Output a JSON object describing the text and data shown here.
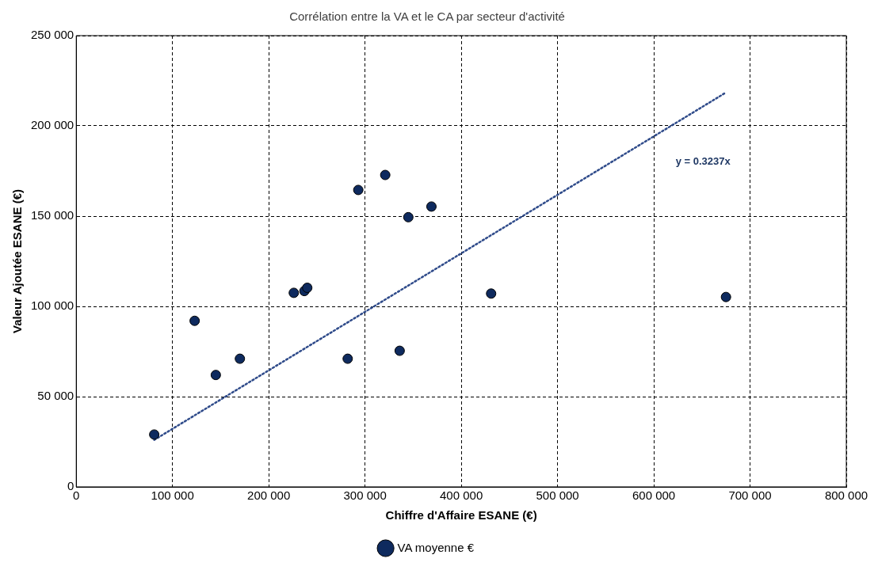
{
  "chart_data": {
    "type": "scatter",
    "title": "Corrélation entre la VA et le CA par secteur d'activité",
    "xlabel": "Chiffre d'Affaire ESANE (€)",
    "ylabel": "Valeur Ajoutée ESANE (€)",
    "series": [
      {
        "name": "VA moyenne €",
        "color": "#0e2a5e",
        "x": [
          81000,
          123000,
          145000,
          170000,
          226000,
          237000,
          240000,
          282000,
          293000,
          321000,
          336000,
          345000,
          369000,
          431000,
          675000
        ],
        "values": [
          29000,
          92000,
          62000,
          71000,
          107500,
          108500,
          110300,
          71000,
          164500,
          172800,
          75400,
          149400,
          155300,
          107100,
          105200
        ]
      },
      {
        "type": "line",
        "color": "#2f4b8a",
        "line_style": "dotted",
        "marker": "none",
        "x": [
          81000,
          675000
        ],
        "values": [
          26000,
          218500
        ]
      }
    ],
    "annotations": [
      "y = 0.3237x"
    ],
    "xlim": [
      0,
      800000
    ],
    "xticks": [
      0,
      {
        "value": 100000,
        "label": "100 000"
      },
      {
        "value": 200000,
        "label": "200 000"
      },
      {
        "value": 300000,
        "label": "300 000"
      },
      {
        "value": 400000,
        "label": "400 000"
      },
      {
        "value": 500000,
        "label": "500 000"
      },
      {
        "value": 600000,
        "label": "600 000"
      },
      {
        "value": 700000,
        "label": "700 000"
      },
      {
        "value": 800000,
        "label": "800 000"
      }
    ],
    "ylim": [
      0,
      250000
    ],
    "yticks": [
      0,
      {
        "value": 50000,
        "label": "50 000"
      },
      {
        "value": 100000,
        "label": "100 000"
      },
      {
        "value": 150000,
        "label": "150 000"
      },
      {
        "value": 200000,
        "label": "200 000"
      },
      {
        "value": 250000,
        "label": "250 000"
      }
    ],
    "grid": true,
    "legend": "bottom",
    "marker": "circle"
  }
}
